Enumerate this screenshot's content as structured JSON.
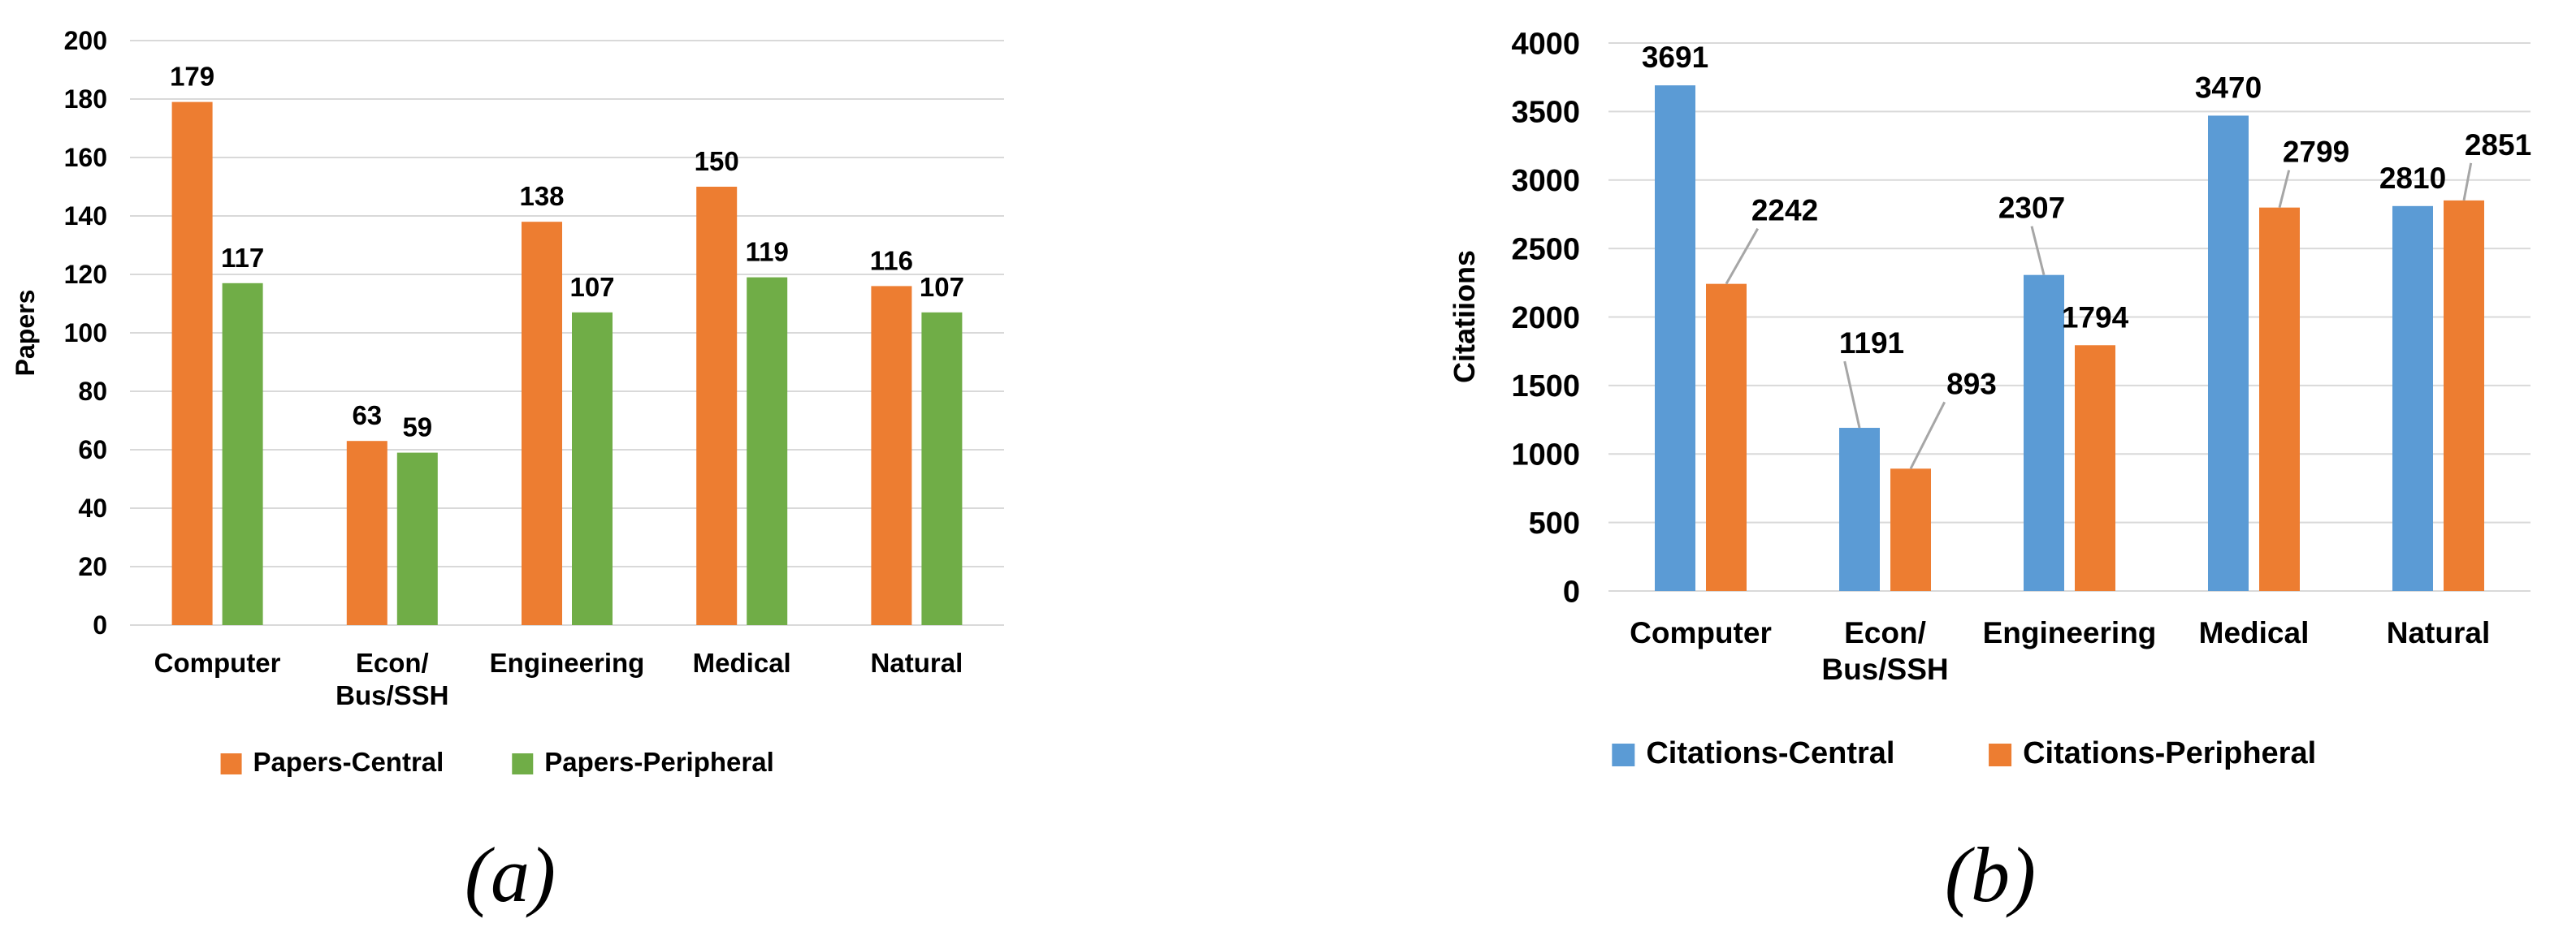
{
  "colors": {
    "orange": "#ED7D31",
    "green": "#70AD47",
    "blue": "#5B9BD5",
    "grid": "#D9D9D9",
    "leader": "#A6A6A6"
  },
  "captions": {
    "a": "(a)",
    "b": "(b)"
  },
  "chart_data": [
    {
      "type": "bar",
      "title": "",
      "xlabel": "",
      "ylabel": "Papers",
      "ylim": [
        0,
        200
      ],
      "yticks": [
        0,
        20,
        40,
        60,
        80,
        100,
        120,
        140,
        160,
        180,
        200
      ],
      "grid": true,
      "legend_position": "bottom",
      "categories": [
        [
          "Computer"
        ],
        [
          "Econ/",
          "Bus/SSH"
        ],
        [
          "Engineering"
        ],
        [
          "Medical"
        ],
        [
          "Natural"
        ]
      ],
      "series": [
        {
          "name": "Papers-Central",
          "color": "#ED7D31",
          "values": [
            179,
            63,
            138,
            150,
            116
          ]
        },
        {
          "name": "Papers-Peripheral",
          "color": "#70AD47",
          "values": [
            117,
            59,
            107,
            119,
            107
          ]
        }
      ]
    },
    {
      "type": "bar",
      "title": "",
      "xlabel": "",
      "ylabel": "Citatiions",
      "ylim": [
        0,
        4000
      ],
      "yticks": [
        0,
        500,
        1000,
        1500,
        2000,
        2500,
        3000,
        3500,
        4000
      ],
      "grid": true,
      "legend_position": "bottom",
      "categories": [
        [
          "Computer"
        ],
        [
          "Econ/",
          "Bus/SSH"
        ],
        [
          "Engineering"
        ],
        [
          "Medical"
        ],
        [
          "Natural"
        ]
      ],
      "series": [
        {
          "name": "Citations-Central",
          "color": "#5B9BD5",
          "values": [
            3691,
            1191,
            2307,
            3470,
            2810
          ]
        },
        {
          "name": "Citations-Peripheral",
          "color": "#ED7D31",
          "values": [
            2242,
            893,
            1794,
            2799,
            2851
          ]
        }
      ]
    }
  ]
}
